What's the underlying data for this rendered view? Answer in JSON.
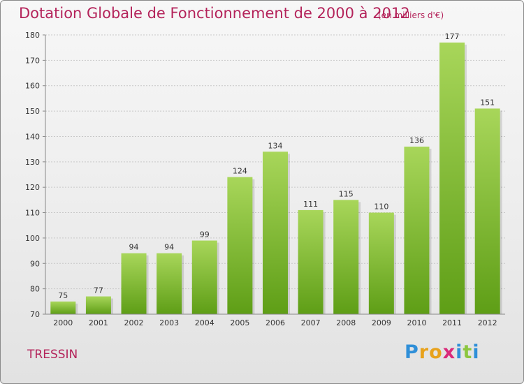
{
  "header": {
    "title": "Dotation Globale de Fonctionnement de 2000 à 2012",
    "unit": "(en milliers d'€)"
  },
  "footer": {
    "place": "TRESSIN",
    "logo_text": "Proxiti"
  },
  "colors": {
    "title": "#b4235a",
    "bar_top": "#a8d65a",
    "bar_bottom": "#5e9e16",
    "logo_letters": [
      "#2f8fd8",
      "#e8a21c",
      "#e8a21c",
      "#d92a7a",
      "#2f8fd8",
      "#8cc63f",
      "#2f8fd8"
    ]
  },
  "chart_data": {
    "type": "bar",
    "categories": [
      "2000",
      "2001",
      "2002",
      "2003",
      "2004",
      "2005",
      "2006",
      "2007",
      "2008",
      "2009",
      "2010",
      "2011",
      "2012"
    ],
    "values": [
      75,
      77,
      94,
      94,
      99,
      124,
      134,
      111,
      115,
      110,
      136,
      177,
      151
    ],
    "ylim": [
      70,
      180
    ],
    "yticks": [
      70,
      80,
      90,
      100,
      110,
      120,
      130,
      140,
      150,
      160,
      170,
      180
    ],
    "grid": true,
    "legend": "none"
  }
}
